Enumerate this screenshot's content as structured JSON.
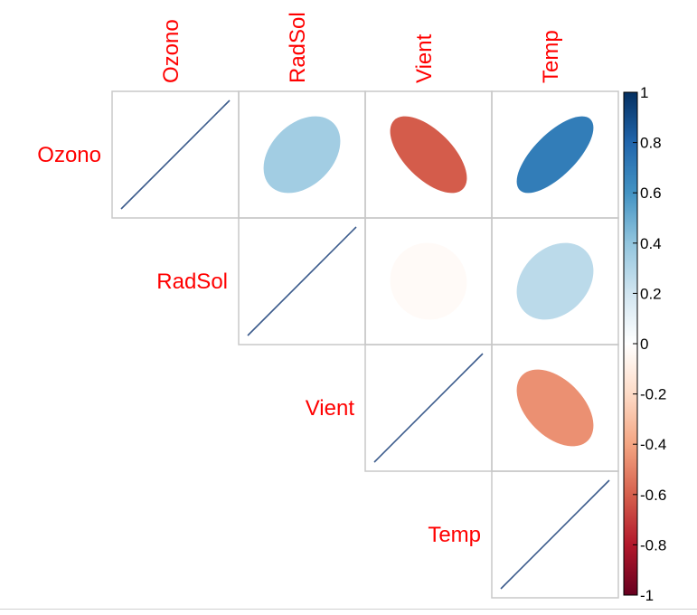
{
  "chart_data": {
    "type": "heatmap",
    "variables": [
      "Ozono",
      "RadSol",
      "Vient",
      "Temp"
    ],
    "layout": "upper",
    "method": "ellipse",
    "correlations": [
      [
        1.0,
        0.35,
        -0.61,
        0.7
      ],
      [
        0.35,
        1.0,
        -0.03,
        0.27
      ],
      [
        -0.61,
        -0.03,
        1.0,
        -0.46
      ],
      [
        0.7,
        0.27,
        -0.46,
        1.0
      ]
    ],
    "colorbar": {
      "range": [
        -1,
        1
      ],
      "ticks": [
        "1",
        "0.8",
        "0.6",
        "0.4",
        "0.2",
        "0",
        "-0.2",
        "-0.4",
        "-0.6",
        "-0.8",
        "-1"
      ],
      "colors": [
        "#67001F",
        "#B2182B",
        "#D6604D",
        "#F4A582",
        "#FDDBC7",
        "#FFFFFF",
        "#D1E5F0",
        "#92C5DE",
        "#4393C3",
        "#2166AC",
        "#053061"
      ]
    },
    "label_color": "#FF0000",
    "grid": true,
    "legend_position": "right"
  }
}
